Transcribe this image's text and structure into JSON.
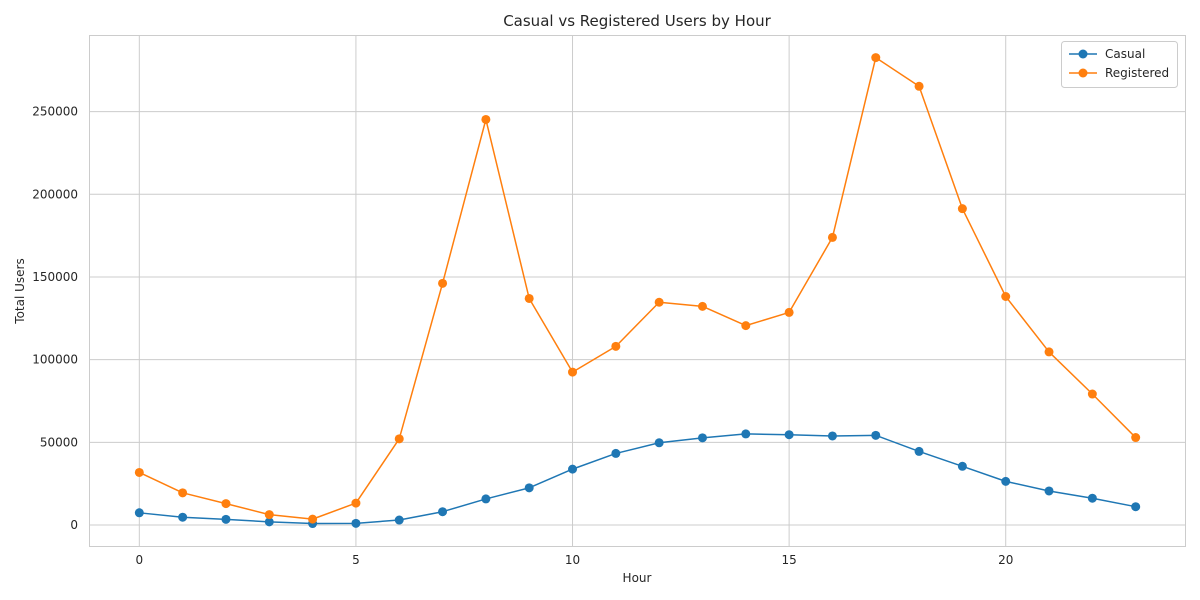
{
  "chart_data": {
    "type": "line",
    "title": "Casual vs Registered Users by Hour",
    "xlabel": "Hour",
    "ylabel": "Total Users",
    "x": [
      0,
      1,
      2,
      3,
      4,
      5,
      6,
      7,
      8,
      9,
      10,
      11,
      12,
      13,
      14,
      15,
      16,
      17,
      18,
      19,
      20,
      21,
      22,
      23
    ],
    "xlim": [
      -1.15,
      24.15
    ],
    "ylim": [
      -13000,
      296000
    ],
    "xticks": [
      0,
      5,
      10,
      15,
      20
    ],
    "yticks": [
      0,
      50000,
      100000,
      150000,
      200000,
      250000
    ],
    "grid": true,
    "legend_position": "top-right",
    "series": [
      {
        "name": "Casual",
        "color": "#1f77b4",
        "values": [
          7375,
          4709,
          3412,
          1893,
          874,
          1012,
          3017,
          8037,
          15761,
          22458,
          33789,
          43286,
          49718,
          52713,
          55089,
          54606,
          53834,
          54220,
          44496,
          35505,
          26378,
          20570,
          16200,
          11065
        ]
      },
      {
        "name": "Registered",
        "color": "#ff7f0e",
        "values": [
          31755,
          19455,
          12940,
          6281,
          3554,
          13249,
          52115,
          146134,
          245240,
          136980,
          92468,
          108034,
          134696,
          132206,
          120563,
          128543,
          173914,
          282640,
          265276,
          191284,
          138172,
          104675,
          79210,
          52877
        ]
      }
    ]
  }
}
